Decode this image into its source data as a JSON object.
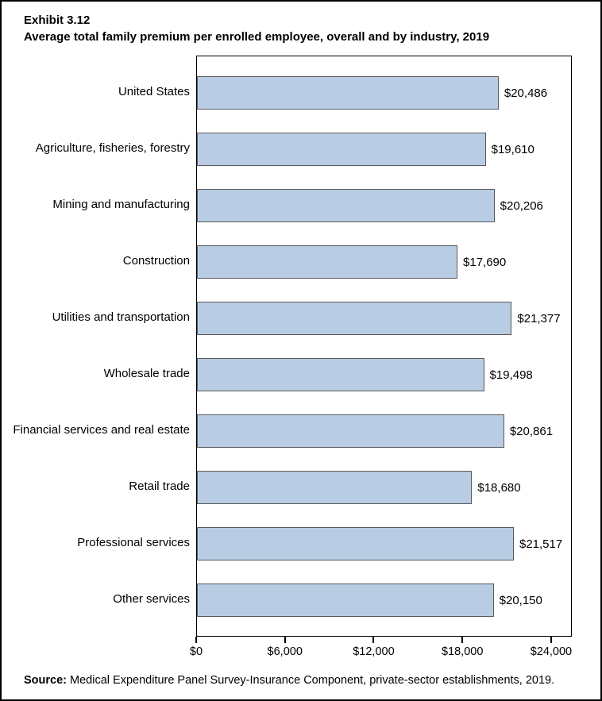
{
  "title": {
    "line1": "Exhibit 3.12",
    "line2": "Average total family premium per enrolled employee, overall and by industry, 2019"
  },
  "source": {
    "label": "Source:",
    "text": " Medical Expenditure Panel Survey-Insurance Component, private-sector establishments, 2019."
  },
  "chart_data": {
    "type": "bar",
    "orientation": "horizontal",
    "title": "Exhibit 3.12 Average total family premium per enrolled employee, overall and by industry, 2019",
    "categories": [
      "United States",
      "Agriculture, fisheries, forestry",
      "Mining and manufacturing",
      "Construction",
      "Utilities and transportation",
      "Wholesale trade",
      "Financial services and real estate",
      "Retail trade",
      "Professional services",
      "Other services"
    ],
    "values": [
      20486,
      19610,
      20206,
      17690,
      21377,
      19498,
      20861,
      18680,
      21517,
      20150
    ],
    "value_labels": [
      "$20,486",
      "$19,610",
      "$20,206",
      "$17,690",
      "$21,377",
      "$19,498",
      "$20,861",
      "$18,680",
      "$21,517",
      "$20,150"
    ],
    "xlabel": "",
    "ylabel": "",
    "xlim": [
      0,
      25400
    ],
    "xticks": [
      {
        "value": 0,
        "label": "$0"
      },
      {
        "value": 6000,
        "label": "$6,000"
      },
      {
        "value": 12000,
        "label": "$12,000"
      },
      {
        "value": 18000,
        "label": "$18,000"
      },
      {
        "value": 24000,
        "label": "$24,000"
      }
    ],
    "grid": false,
    "legend": false,
    "colors": {
      "bar_fill": "#b8cce4",
      "bar_border": "#595959",
      "frame": "#000000",
      "text": "#000000",
      "background": "#ffffff"
    }
  }
}
